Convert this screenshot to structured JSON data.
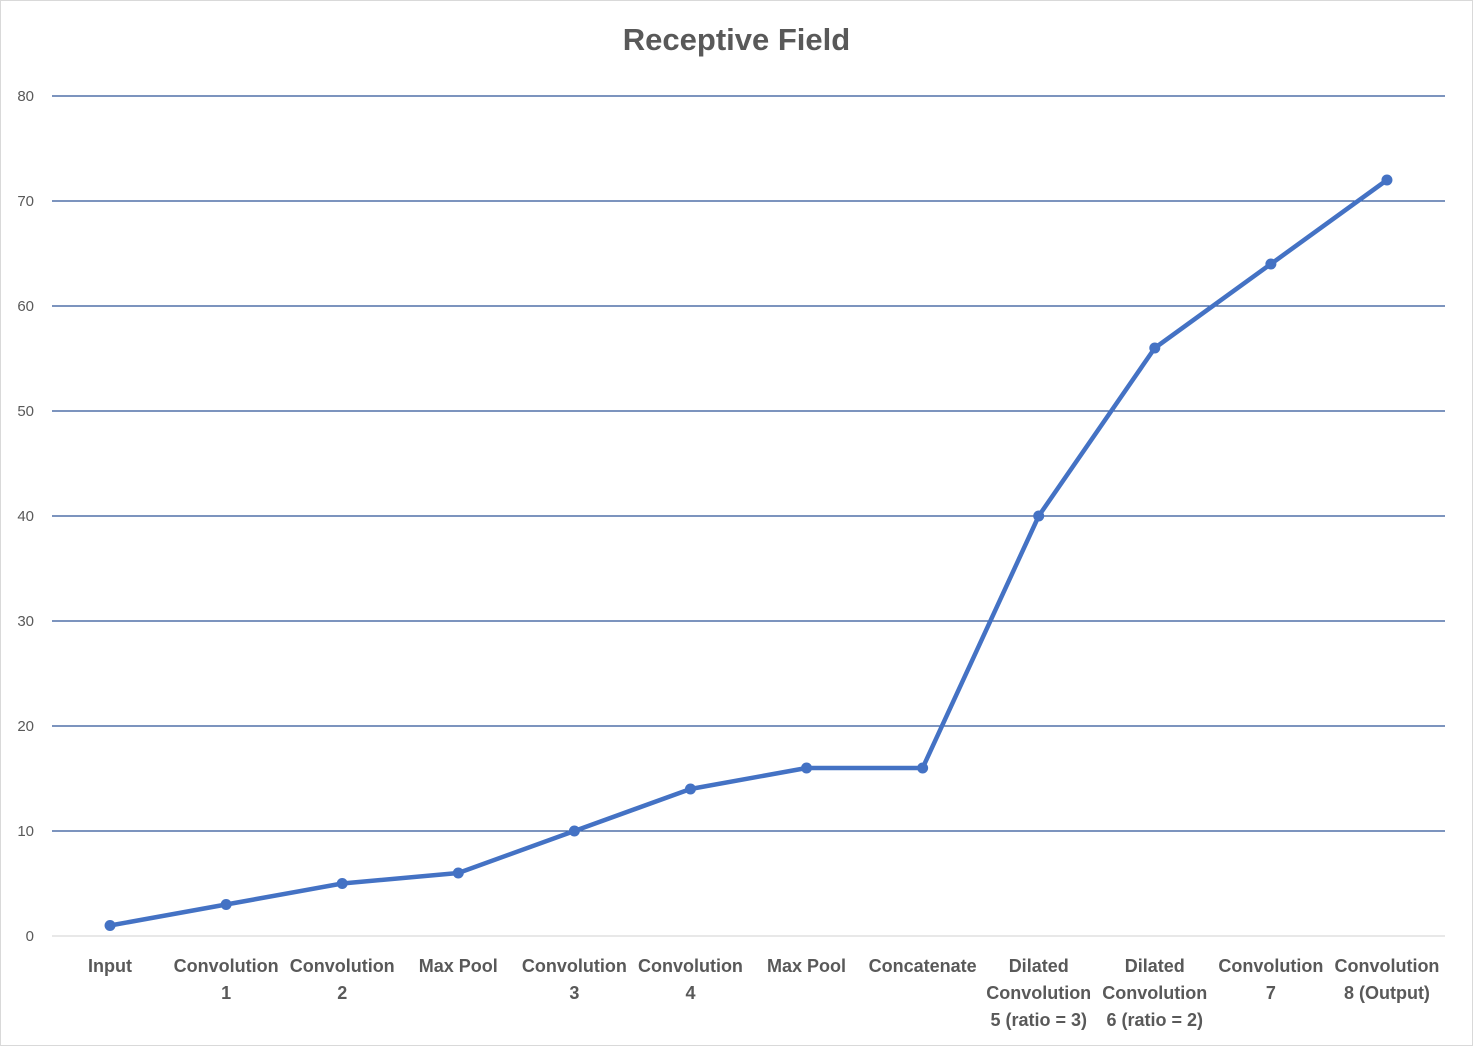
{
  "chart_data": {
    "type": "line",
    "title": "Receptive Field",
    "xlabel": "",
    "ylabel": "",
    "categories": [
      "Input",
      "Convolution 1",
      "Convolution 2",
      "Max Pool",
      "Convolution 3",
      "Convolution 4",
      "Max Pool",
      "Concatenate",
      "Dilated Convolution 5 (ratio = 3)",
      "Dilated Convolution 6 (ratio = 2)",
      "Convolution 7",
      "Convolution 8 (Output)"
    ],
    "category_lines": [
      [
        "Input"
      ],
      [
        "Convolution",
        "1"
      ],
      [
        "Convolution",
        "2"
      ],
      [
        "Max Pool"
      ],
      [
        "Convolution",
        "3"
      ],
      [
        "Convolution",
        "4"
      ],
      [
        "Max Pool"
      ],
      [
        "Concatenate"
      ],
      [
        "Dilated",
        "Convolution",
        "5 (ratio = 3)"
      ],
      [
        "Dilated",
        "Convolution",
        "6 (ratio = 2)"
      ],
      [
        "Convolution",
        "7"
      ],
      [
        "Convolution",
        "8 (Output)"
      ]
    ],
    "series": [
      {
        "values": [
          1,
          3,
          5,
          6,
          10,
          14,
          16,
          16,
          40,
          56,
          64,
          72
        ],
        "color": "#4472c4"
      }
    ],
    "ylim": [
      0,
      80
    ],
    "yticks": [
      0,
      10,
      20,
      30,
      40,
      50,
      60,
      70,
      80
    ],
    "grid": "horizontal",
    "gridline_color": "#2e5597",
    "legend": "none"
  }
}
